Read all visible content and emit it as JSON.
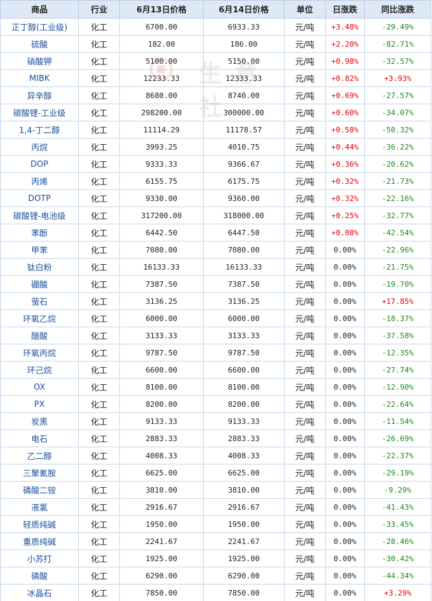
{
  "table": {
    "headers": [
      "商品",
      "行业",
      "6月13日价格",
      "6月14日价格",
      "单位",
      "日涨跌",
      "同比涨跌"
    ],
    "rows": [
      {
        "name": "正丁醇(工业级)",
        "industry": "化工",
        "price_prev": "6700.00",
        "price_curr": "6933.33",
        "unit": "元/吨",
        "daily_change": "+3.48%",
        "yoy_change": "-29.49%"
      },
      {
        "name": "硫酸",
        "industry": "化工",
        "price_prev": "182.00",
        "price_curr": "186.00",
        "unit": "元/吨",
        "daily_change": "+2.20%",
        "yoy_change": "-82.71%"
      },
      {
        "name": "硝酸钾",
        "industry": "化工",
        "price_prev": "5100.00",
        "price_curr": "5150.00",
        "unit": "元/吨",
        "daily_change": "+0.98%",
        "yoy_change": "-32.57%"
      },
      {
        "name": "MIBK",
        "industry": "化工",
        "price_prev": "12233.33",
        "price_curr": "12333.33",
        "unit": "元/吨",
        "daily_change": "+0.82%",
        "yoy_change": "+3.93%"
      },
      {
        "name": "异辛醇",
        "industry": "化工",
        "price_prev": "8680.00",
        "price_curr": "8740.00",
        "unit": "元/吨",
        "daily_change": "+0.69%",
        "yoy_change": "-27.57%"
      },
      {
        "name": "碳酸锂-工业级",
        "industry": "化工",
        "price_prev": "298200.00",
        "price_curr": "300000.00",
        "unit": "元/吨",
        "daily_change": "+0.60%",
        "yoy_change": "-34.07%"
      },
      {
        "name": "1,4-丁二醇",
        "industry": "化工",
        "price_prev": "11114.29",
        "price_curr": "11178.57",
        "unit": "元/吨",
        "daily_change": "+0.58%",
        "yoy_change": "-50.32%"
      },
      {
        "name": "丙烷",
        "industry": "化工",
        "price_prev": "3993.25",
        "price_curr": "4010.75",
        "unit": "元/吨",
        "daily_change": "+0.44%",
        "yoy_change": "-36.22%"
      },
      {
        "name": "DOP",
        "industry": "化工",
        "price_prev": "9333.33",
        "price_curr": "9366.67",
        "unit": "元/吨",
        "daily_change": "+0.36%",
        "yoy_change": "-20.62%"
      },
      {
        "name": "丙烯",
        "industry": "化工",
        "price_prev": "6155.75",
        "price_curr": "6175.75",
        "unit": "元/吨",
        "daily_change": "+0.32%",
        "yoy_change": "-21.73%"
      },
      {
        "name": "DOTP",
        "industry": "化工",
        "price_prev": "9330.00",
        "price_curr": "9360.00",
        "unit": "元/吨",
        "daily_change": "+0.32%",
        "yoy_change": "-22.16%"
      },
      {
        "name": "碳酸锂-电池级",
        "industry": "化工",
        "price_prev": "317200.00",
        "price_curr": "318000.00",
        "unit": "元/吨",
        "daily_change": "+0.25%",
        "yoy_change": "-32.77%"
      },
      {
        "name": "苯酚",
        "industry": "化工",
        "price_prev": "6442.50",
        "price_curr": "6447.50",
        "unit": "元/吨",
        "daily_change": "+0.08%",
        "yoy_change": "-42.54%"
      },
      {
        "name": "甲苯",
        "industry": "化工",
        "price_prev": "7080.00",
        "price_curr": "7080.00",
        "unit": "元/吨",
        "daily_change": "0.00%",
        "yoy_change": "-22.96%"
      },
      {
        "name": "钛白粉",
        "industry": "化工",
        "price_prev": "16133.33",
        "price_curr": "16133.33",
        "unit": "元/吨",
        "daily_change": "0.00%",
        "yoy_change": "-21.75%"
      },
      {
        "name": "硼酸",
        "industry": "化工",
        "price_prev": "7387.50",
        "price_curr": "7387.50",
        "unit": "元/吨",
        "daily_change": "0.00%",
        "yoy_change": "-19.70%"
      },
      {
        "name": "萤石",
        "industry": "化工",
        "price_prev": "3136.25",
        "price_curr": "3136.25",
        "unit": "元/吨",
        "daily_change": "0.00%",
        "yoy_change": "+17.85%"
      },
      {
        "name": "环氧乙烷",
        "industry": "化工",
        "price_prev": "6000.00",
        "price_curr": "6000.00",
        "unit": "元/吨",
        "daily_change": "0.00%",
        "yoy_change": "-18.37%"
      },
      {
        "name": "醋酸",
        "industry": "化工",
        "price_prev": "3133.33",
        "price_curr": "3133.33",
        "unit": "元/吨",
        "daily_change": "0.00%",
        "yoy_change": "-37.58%"
      },
      {
        "name": "环氧丙烷",
        "industry": "化工",
        "price_prev": "9787.50",
        "price_curr": "9787.50",
        "unit": "元/吨",
        "daily_change": "0.00%",
        "yoy_change": "-12.35%"
      },
      {
        "name": "环己烷",
        "industry": "化工",
        "price_prev": "6600.00",
        "price_curr": "6600.00",
        "unit": "元/吨",
        "daily_change": "0.00%",
        "yoy_change": "-27.74%"
      },
      {
        "name": "OX",
        "industry": "化工",
        "price_prev": "8100.00",
        "price_curr": "8100.00",
        "unit": "元/吨",
        "daily_change": "0.00%",
        "yoy_change": "-12.90%"
      },
      {
        "name": "PX",
        "industry": "化工",
        "price_prev": "8200.00",
        "price_curr": "8200.00",
        "unit": "元/吨",
        "daily_change": "0.00%",
        "yoy_change": "-22.64%"
      },
      {
        "name": "炭黑",
        "industry": "化工",
        "price_prev": "9133.33",
        "price_curr": "9133.33",
        "unit": "元/吨",
        "daily_change": "0.00%",
        "yoy_change": "-11.54%"
      },
      {
        "name": "电石",
        "industry": "化工",
        "price_prev": "2883.33",
        "price_curr": "2883.33",
        "unit": "元/吨",
        "daily_change": "0.00%",
        "yoy_change": "-26.69%"
      },
      {
        "name": "乙二醇",
        "industry": "化工",
        "price_prev": "4008.33",
        "price_curr": "4008.33",
        "unit": "元/吨",
        "daily_change": "0.00%",
        "yoy_change": "-22.37%"
      },
      {
        "name": "三聚氰胺",
        "industry": "化工",
        "price_prev": "6625.00",
        "price_curr": "6625.00",
        "unit": "元/吨",
        "daily_change": "0.00%",
        "yoy_change": "-29.19%"
      },
      {
        "name": "磷酸二铵",
        "industry": "化工",
        "price_prev": "3810.00",
        "price_curr": "3810.00",
        "unit": "元/吨",
        "daily_change": "0.00%",
        "yoy_change": "-9.29%"
      },
      {
        "name": "液氯",
        "industry": "化工",
        "price_prev": "2916.67",
        "price_curr": "2916.67",
        "unit": "元/吨",
        "daily_change": "0.00%",
        "yoy_change": "-41.43%"
      },
      {
        "name": "轻质纯碱",
        "industry": "化工",
        "price_prev": "1950.00",
        "price_curr": "1950.00",
        "unit": "元/吨",
        "daily_change": "0.00%",
        "yoy_change": "-33.45%"
      },
      {
        "name": "重质纯碱",
        "industry": "化工",
        "price_prev": "2241.67",
        "price_curr": "2241.67",
        "unit": "元/吨",
        "daily_change": "0.00%",
        "yoy_change": "-28.46%"
      },
      {
        "name": "小苏打",
        "industry": "化工",
        "price_prev": "1925.00",
        "price_curr": "1925.00",
        "unit": "元/吨",
        "daily_change": "0.00%",
        "yoy_change": "-30.42%"
      },
      {
        "name": "磷酸",
        "industry": "化工",
        "price_prev": "6290.00",
        "price_curr": "6290.00",
        "unit": "元/吨",
        "daily_change": "0.00%",
        "yoy_change": "-44.34%"
      },
      {
        "name": "冰晶石",
        "industry": "化工",
        "price_prev": "7850.00",
        "price_curr": "7850.00",
        "unit": "元/吨",
        "daily_change": "0.00%",
        "yoy_change": "+3.29%"
      }
    ]
  },
  "watermark": {
    "brand": "生意社",
    "url": "100ppi.com"
  },
  "colors": {
    "header_bg": "#dfe9f6",
    "grid_line": "#c7d7ea",
    "name_text": "#1a4f9c",
    "rise": "#e3000b",
    "fall": "#188b1c",
    "neutral": "#222222"
  }
}
